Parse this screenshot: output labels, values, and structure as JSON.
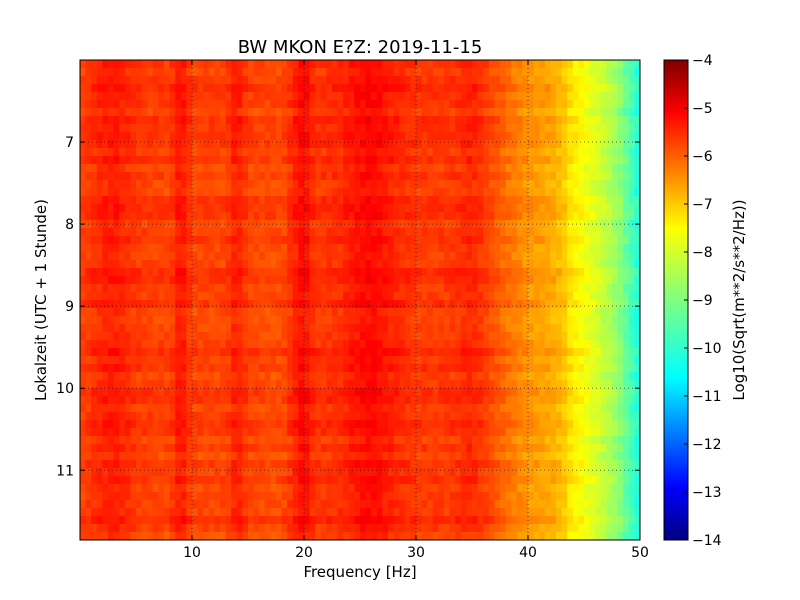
{
  "chart_data": {
    "type": "heatmap",
    "title": "BW MKON E?Z: 2019-11-15",
    "xlabel": "Frequency [Hz]",
    "ylabel": "Lokalzeit (UTC + 1 Stunde)",
    "xlim": [
      0,
      50
    ],
    "ylim": [
      11.85,
      6.0
    ],
    "x_ticks": [
      10,
      20,
      30,
      40,
      50
    ],
    "x_tick_labels": [
      "10",
      "20",
      "30",
      "40",
      "50"
    ],
    "y_ticks": [
      7,
      8,
      9,
      10,
      11
    ],
    "y_tick_labels": [
      "7",
      "8",
      "9",
      "10",
      "11"
    ],
    "y_axis_inverted": true,
    "grid": true,
    "colormap": "jet",
    "colorbar": {
      "label": "Log10(Sqrt(m**2/s**2/Hz))",
      "vmin": -14,
      "vmax": -4,
      "ticks": [
        -4,
        -5,
        -6,
        -7,
        -8,
        -9,
        -10,
        -11,
        -12,
        -13,
        -14
      ],
      "tick_labels": [
        "−4",
        "−5",
        "−6",
        "−7",
        "−8",
        "−9",
        "−10",
        "−11",
        "−12",
        "−13",
        "−14"
      ]
    },
    "frequency_profile": {
      "frequency_hz": [
        0,
        2,
        3,
        5,
        8,
        9,
        10,
        13,
        14,
        15,
        18,
        20,
        21,
        23,
        25,
        26,
        28,
        30,
        33,
        35,
        36,
        38,
        40,
        42,
        43,
        44,
        45,
        46,
        47,
        48,
        49,
        50
      ],
      "level": [
        -5.9,
        -5.6,
        -5.5,
        -5.8,
        -5.9,
        -5.4,
        -5.9,
        -5.9,
        -5.5,
        -5.9,
        -6.0,
        -5.3,
        -5.8,
        -5.7,
        -5.4,
        -5.3,
        -5.6,
        -5.8,
        -5.8,
        -5.6,
        -5.8,
        -6.3,
        -6.7,
        -6.9,
        -7.1,
        -7.6,
        -7.8,
        -8.1,
        -8.4,
        -8.8,
        -9.4,
        -10.0
      ]
    }
  }
}
